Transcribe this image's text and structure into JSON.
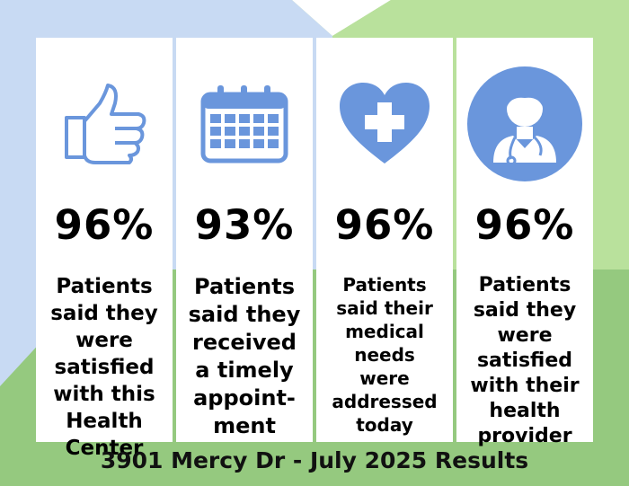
{
  "cards": [
    {
      "icon": "thumbs-up-icon",
      "percent": "96%",
      "text": "Patients\nsaid they\nwere\nsatisfied\nwith this\nHealth\nCenter"
    },
    {
      "icon": "calendar-icon",
      "percent": "93%",
      "text": "Patients\nsaid they\nreceived\na timely\nappoint-\nment"
    },
    {
      "icon": "heart-plus-icon",
      "percent": "96%",
      "text": "Patients\nsaid their\nmedical\nneeds\nwere\naddressed\ntoday"
    },
    {
      "icon": "doctor-icon",
      "percent": "96%",
      "text": "Patients\nsaid they\nwere\nsatisfied\nwith their\nhealth\nprovider"
    }
  ],
  "footer": "3901 Mercy Dr - July 2025 Results",
  "colors": {
    "icon_blue": "#6a96dc",
    "bg_light_blue": "#c8daf3",
    "bg_light_green": "#b9e19c",
    "bg_green": "#95c97f"
  }
}
